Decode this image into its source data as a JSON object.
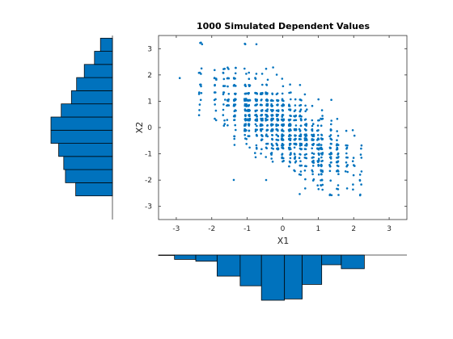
{
  "colors": {
    "accent": "#0072BD",
    "axis": "#262626",
    "bar_edge": "#000000"
  },
  "chart_data": [
    {
      "type": "scatter",
      "title": "1000 Simulated Dependent Values",
      "xlabel": "X1",
      "ylabel": "X2",
      "xlim": [
        -3.5,
        3.5
      ],
      "ylim": [
        -3.5,
        3.5
      ],
      "xticks": [
        -3,
        -2,
        -1,
        0,
        1,
        2,
        3
      ],
      "yticks": [
        -3,
        -2,
        -1,
        0,
        1,
        2,
        3
      ],
      "xtick_labels": [
        "-3",
        "-2",
        "-1",
        "0",
        "1",
        "2",
        "3"
      ],
      "ytick_labels": [
        "-3",
        "-2",
        "-1",
        "0",
        "1",
        "2",
        "3"
      ],
      "grid": false,
      "box": true,
      "x_levels": [
        -3.5,
        -2.9,
        -2.35,
        -2.3,
        -1.9,
        -1.65,
        -1.55,
        -1.35,
        -1.05,
        -0.95,
        -0.75,
        -0.6,
        -0.45,
        -0.3,
        -0.15,
        0.0,
        0.2,
        0.35,
        0.5,
        0.65,
        0.85,
        1.0,
        1.1,
        1.35,
        1.55,
        1.8,
        2.0,
        2.2
      ],
      "y_levels": [
        3.2,
        2.25,
        2.2,
        2.05,
        1.85,
        1.6,
        1.3,
        1.05,
        0.85,
        0.65,
        0.45,
        0.3,
        0.1,
        -0.1,
        -0.3,
        -0.45,
        -0.65,
        -0.8,
        -1.0,
        -1.15,
        -1.3,
        -1.45,
        -1.65,
        -1.8,
        -2.0,
        -2.2,
        -2.35,
        -2.55
      ]
    },
    {
      "type": "bar",
      "orientation": "horizontal",
      "label": "X2 marginal histogram",
      "bin_edges": [
        -2.6,
        -2.1,
        -1.6,
        -1.1,
        -0.6,
        -0.1,
        0.4,
        0.9,
        1.4,
        1.9,
        2.4,
        2.9,
        3.4
      ],
      "values": [
        43,
        55,
        57,
        63,
        72,
        72,
        60,
        48,
        42,
        33,
        21,
        14
      ]
    },
    {
      "type": "bar",
      "orientation": "vertical",
      "label": "X1 marginal histogram",
      "bin_edges": [
        -3.6,
        -3.05,
        -2.45,
        -1.85,
        -1.2,
        -0.6,
        0.05,
        0.55,
        1.1,
        1.65,
        2.3
      ],
      "values": [
        1,
        10,
        14,
        48,
        70,
        103,
        100,
        67,
        22,
        31
      ]
    }
  ]
}
